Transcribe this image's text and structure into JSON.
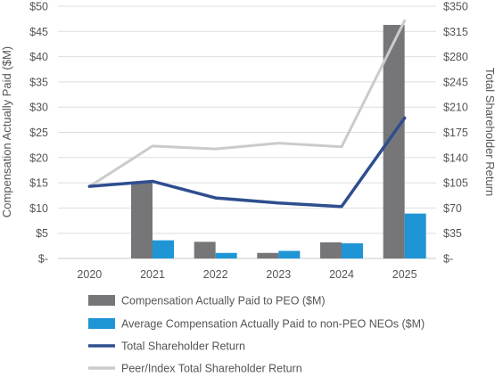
{
  "chart_data": {
    "type": "bar",
    "categories": [
      "2020",
      "2021",
      "2022",
      "2023",
      "2024",
      "2025"
    ],
    "series": [
      {
        "name": "Compensation Actually Paid to PEO ($M)",
        "type": "bar",
        "axis": "left",
        "color": "#767679",
        "values": [
          0,
          15.2,
          3.3,
          1.1,
          3.2,
          46.3
        ]
      },
      {
        "name": "Average Compensation Actually Paid to non-PEO NEOs ($M)",
        "type": "bar",
        "axis": "left",
        "color": "#1f95d6",
        "values": [
          0,
          3.6,
          1.1,
          1.5,
          3.0,
          8.9
        ]
      },
      {
        "name": "Total Shareholder Return",
        "type": "line",
        "axis": "right",
        "color": "#2e4e8f",
        "values": [
          100,
          107,
          84,
          77,
          72,
          195
        ]
      },
      {
        "name": "Peer/Index Total Shareholder Return",
        "type": "line",
        "axis": "right",
        "color": "#cbcbcb",
        "values": [
          100,
          156,
          152,
          160,
          155,
          330
        ]
      }
    ],
    "y_left": {
      "label": "Compensation Actually Paid ($M)",
      "range": [
        0,
        50
      ],
      "ticks": [
        0,
        5,
        10,
        15,
        20,
        25,
        30,
        35,
        40,
        45,
        50
      ],
      "tick_labels": [
        "$-",
        "$5",
        "$10",
        "$15",
        "$20",
        "$25",
        "$30",
        "$35",
        "$40",
        "$45",
        "$50"
      ]
    },
    "y_right": {
      "label": "Total Shareholder Return",
      "range": [
        0,
        350
      ],
      "ticks": [
        0,
        35,
        70,
        105,
        140,
        175,
        210,
        245,
        280,
        315,
        350
      ],
      "tick_labels": [
        "$-",
        "$35",
        "$70",
        "$105",
        "$140",
        "$175",
        "$210",
        "$245",
        "$280",
        "$315",
        "$350"
      ]
    },
    "grid": "horizontal",
    "legend_position": "bottom"
  }
}
